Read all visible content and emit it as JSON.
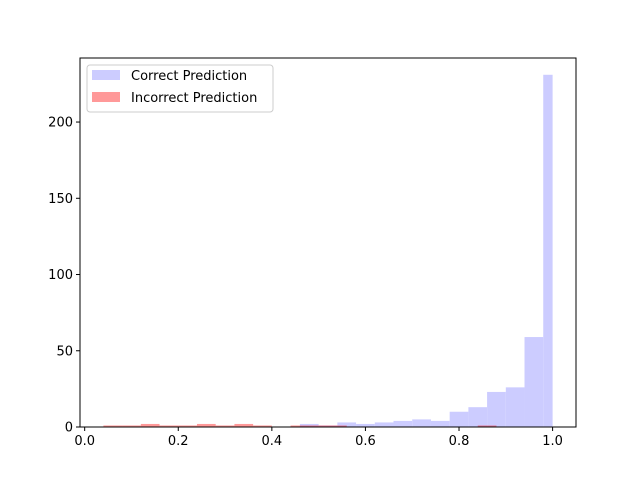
{
  "chart_data": {
    "type": "bar",
    "title": "",
    "xlabel": "",
    "ylabel": "",
    "xlim": [
      -0.01,
      1.05
    ],
    "ylim": [
      0,
      242
    ],
    "xticks": [
      0.0,
      0.2,
      0.4,
      0.6,
      0.8,
      1.0
    ],
    "xtick_labels": [
      "0.0",
      "0.2",
      "0.4",
      "0.6",
      "0.8",
      "1.0"
    ],
    "yticks": [
      0,
      50,
      100,
      150,
      200
    ],
    "ytick_labels": [
      "0",
      "50",
      "100",
      "150",
      "200"
    ],
    "grid": false,
    "legend_position": "top-left",
    "series": [
      {
        "name": "Correct Prediction",
        "color": "#ccccff",
        "opacity": 1,
        "bins": [
          {
            "x0": 0.46,
            "x1": 0.5,
            "count": 2
          },
          {
            "x0": 0.5,
            "x1": 0.54,
            "count": 1
          },
          {
            "x0": 0.54,
            "x1": 0.58,
            "count": 3
          },
          {
            "x0": 0.58,
            "x1": 0.62,
            "count": 2
          },
          {
            "x0": 0.62,
            "x1": 0.66,
            "count": 3
          },
          {
            "x0": 0.66,
            "x1": 0.7,
            "count": 4
          },
          {
            "x0": 0.7,
            "x1": 0.74,
            "count": 5
          },
          {
            "x0": 0.74,
            "x1": 0.78,
            "count": 4
          },
          {
            "x0": 0.78,
            "x1": 0.82,
            "count": 10
          },
          {
            "x0": 0.82,
            "x1": 0.86,
            "count": 13
          },
          {
            "x0": 0.86,
            "x1": 0.9,
            "count": 23
          },
          {
            "x0": 0.9,
            "x1": 0.94,
            "count": 26
          },
          {
            "x0": 0.94,
            "x1": 0.98,
            "count": 59
          },
          {
            "x0": 0.98,
            "x1": 1.0,
            "count": 231
          }
        ]
      },
      {
        "name": "Incorrect Prediction",
        "color": "#ff0000",
        "opacity": 0.4,
        "bins": [
          {
            "x0": 0.04,
            "x1": 0.08,
            "count": 1
          },
          {
            "x0": 0.08,
            "x1": 0.12,
            "count": 1
          },
          {
            "x0": 0.12,
            "x1": 0.16,
            "count": 2
          },
          {
            "x0": 0.16,
            "x1": 0.2,
            "count": 1
          },
          {
            "x0": 0.2,
            "x1": 0.24,
            "count": 1
          },
          {
            "x0": 0.24,
            "x1": 0.28,
            "count": 2
          },
          {
            "x0": 0.28,
            "x1": 0.32,
            "count": 1
          },
          {
            "x0": 0.32,
            "x1": 0.36,
            "count": 2
          },
          {
            "x0": 0.36,
            "x1": 0.4,
            "count": 1
          },
          {
            "x0": 0.44,
            "x1": 0.48,
            "count": 1
          },
          {
            "x0": 0.48,
            "x1": 0.52,
            "count": 1
          },
          {
            "x0": 0.52,
            "x1": 0.56,
            "count": 1
          },
          {
            "x0": 0.84,
            "x1": 0.88,
            "count": 1
          }
        ]
      }
    ]
  }
}
